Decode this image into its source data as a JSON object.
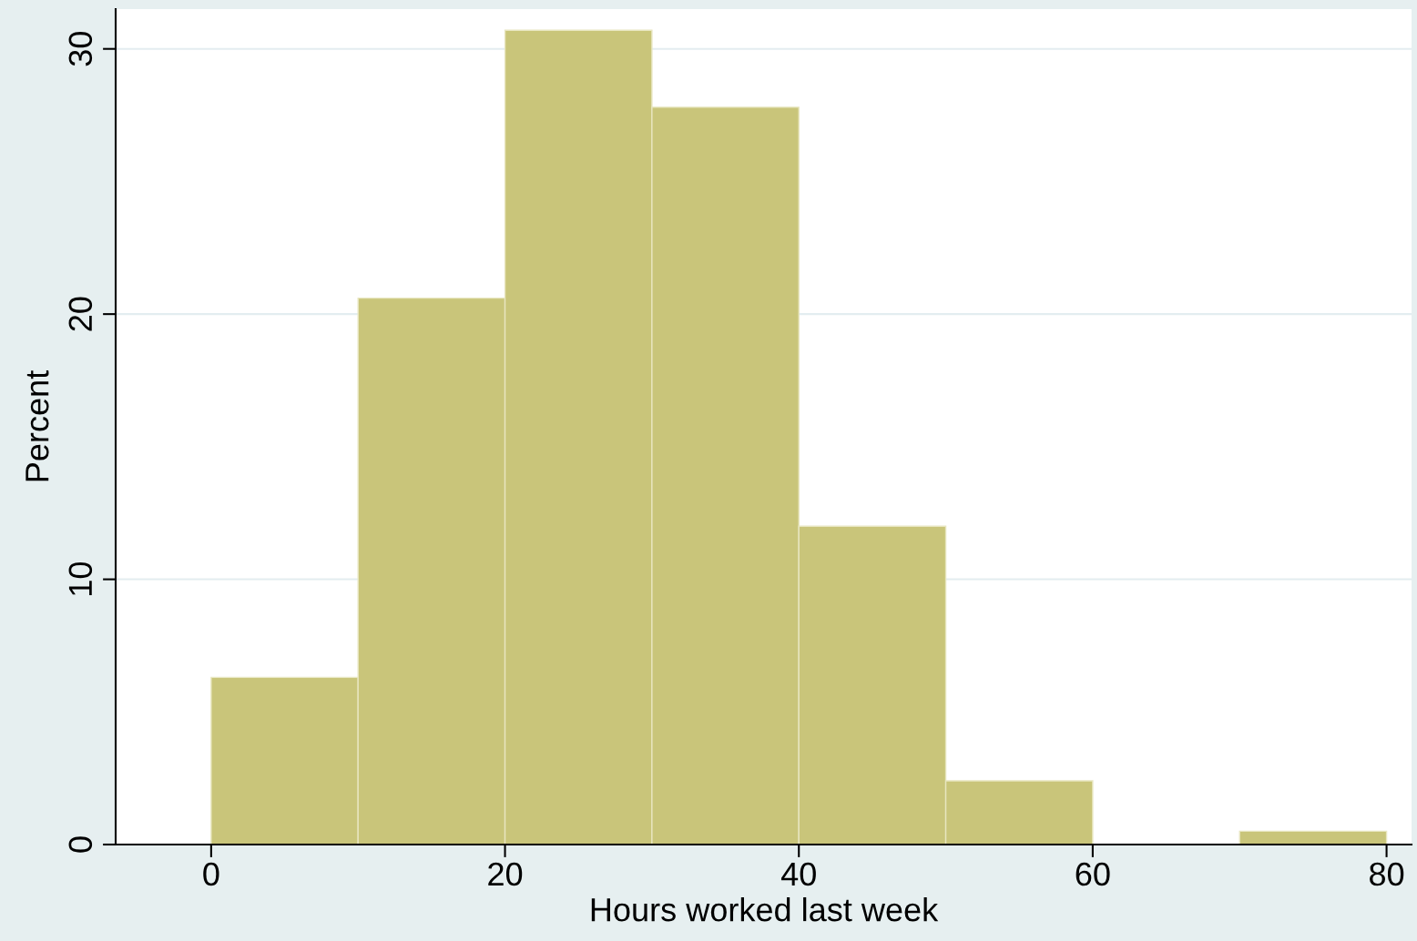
{
  "chart_data": {
    "type": "histogram",
    "xlabel": "Hours worked last week",
    "ylabel": "Percent",
    "bins": [
      0,
      10,
      20,
      30,
      40,
      50,
      60,
      70,
      80
    ],
    "values": [
      6.3,
      20.6,
      30.7,
      27.8,
      12.0,
      2.4,
      0,
      0.5
    ],
    "color": "#c9c57a",
    "xlim": [
      -6.5,
      81.7
    ],
    "ylim": [
      0,
      31.5
    ],
    "xticks": [
      0,
      20,
      40,
      60,
      80
    ],
    "yticks": [
      0,
      10,
      20,
      30
    ],
    "grid": "y"
  }
}
